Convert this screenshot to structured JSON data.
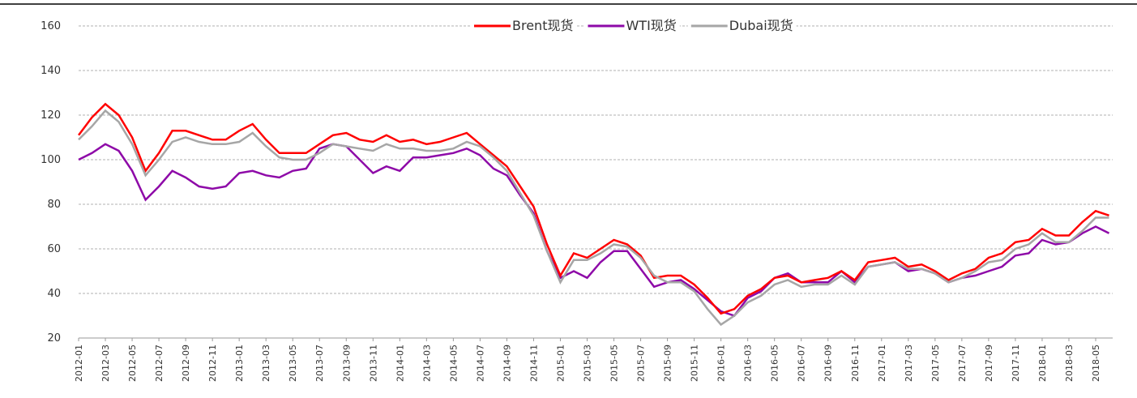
{
  "chart_data": {
    "type": "line",
    "categories": [
      "2012-01",
      null,
      "2012-03",
      null,
      "2012-05",
      null,
      "2012-07",
      null,
      "2012-09",
      null,
      "2012-11",
      null,
      "2013-01",
      null,
      "2013-03",
      null,
      "2013-05",
      null,
      "2013-07",
      null,
      "2013-09",
      null,
      "2013-11",
      null,
      "2014-01",
      null,
      "2014-03",
      null,
      "2014-05",
      null,
      "2014-07",
      null,
      "2014-09",
      null,
      "2014-11",
      null,
      "2015-01",
      null,
      "2015-03",
      null,
      "2015-05",
      null,
      "2015-07",
      null,
      "2015-09",
      null,
      "2015-11",
      null,
      "2016-01",
      null,
      "2016-03",
      null,
      "2016-05",
      null,
      "2016-07",
      null,
      "2016-09",
      null,
      "2016-11",
      null,
      "2017-01",
      null,
      "2017-03",
      null,
      "2017-05",
      null,
      "2017-07",
      null,
      "2017-09",
      null,
      "2017-11",
      null,
      "2018-01",
      null,
      "2018-03",
      null,
      "2018-05",
      null
    ],
    "series": [
      {
        "name": "Brent现货",
        "color": "#ff0000",
        "values": [
          111,
          119,
          125,
          120,
          110,
          95,
          103,
          113,
          113,
          111,
          109,
          109,
          113,
          116,
          109,
          103,
          103,
          103,
          107,
          111,
          112,
          109,
          108,
          111,
          108,
          109,
          107,
          108,
          110,
          112,
          107,
          102,
          97,
          88,
          79,
          62,
          48,
          58,
          56,
          60,
          64,
          62,
          57,
          47,
          48,
          48,
          44,
          38,
          31,
          33,
          39,
          42,
          47,
          48,
          45,
          46,
          47,
          50,
          46,
          54,
          55,
          56,
          52,
          53,
          50,
          46,
          49,
          51,
          56,
          58,
          63,
          64,
          69,
          66,
          66,
          72,
          77,
          75
        ]
      },
      {
        "name": "WTI现货",
        "color": "#8e0aa8",
        "values": [
          100,
          103,
          107,
          104,
          95,
          82,
          88,
          95,
          92,
          88,
          87,
          88,
          94,
          95,
          93,
          92,
          95,
          96,
          105,
          107,
          106,
          100,
          94,
          97,
          95,
          101,
          101,
          102,
          103,
          105,
          102,
          96,
          93,
          84,
          76,
          59,
          47,
          50,
          47,
          54,
          59,
          59,
          51,
          43,
          45,
          46,
          42,
          37,
          32,
          30,
          38,
          41,
          47,
          49,
          45,
          45,
          45,
          50,
          45,
          52,
          53,
          54,
          50,
          51,
          49,
          45,
          47,
          48,
          50,
          52,
          57,
          58,
          64,
          62,
          63,
          67,
          70,
          67
        ]
      },
      {
        "name": "Dubai现货",
        "color": "#a6a6a6",
        "values": [
          109,
          115,
          122,
          117,
          107,
          93,
          100,
          108,
          110,
          108,
          107,
          107,
          108,
          112,
          106,
          101,
          100,
          100,
          103,
          107,
          106,
          105,
          104,
          107,
          105,
          105,
          104,
          104,
          105,
          108,
          106,
          101,
          95,
          85,
          75,
          59,
          45,
          55,
          55,
          58,
          62,
          61,
          56,
          48,
          45,
          45,
          41,
          33,
          26,
          30,
          36,
          39,
          44,
          46,
          43,
          44,
          44,
          48,
          44,
          52,
          53,
          54,
          51,
          51,
          49,
          45,
          47,
          50,
          54,
          55,
          60,
          62,
          67,
          63,
          63,
          68,
          74,
          74
        ]
      }
    ],
    "ylim": [
      20,
      160
    ],
    "yticks": [
      20,
      40,
      60,
      80,
      100,
      120,
      140,
      160
    ],
    "grid": true,
    "legend": "top"
  }
}
